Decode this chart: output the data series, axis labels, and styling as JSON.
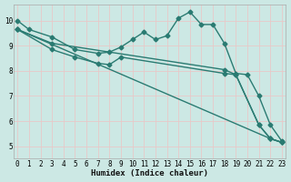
{
  "xlabel": "Humidex (Indice chaleur)",
  "bg_color": "#cce8e4",
  "line_color": "#2a7b72",
  "grid_color": "#dddddd",
  "xlim": [
    -0.3,
    23.3
  ],
  "ylim": [
    4.5,
    10.65
  ],
  "yticks": [
    5,
    6,
    7,
    8,
    9,
    10
  ],
  "xticks": [
    0,
    1,
    2,
    3,
    4,
    5,
    6,
    7,
    8,
    9,
    10,
    11,
    12,
    13,
    14,
    15,
    16,
    17,
    18,
    19,
    20,
    21,
    22,
    23
  ],
  "lines": [
    {
      "x": [
        0,
        1,
        3,
        5,
        7,
        8,
        9,
        10,
        11,
        12,
        13,
        14,
        15,
        16,
        17,
        18,
        19,
        20,
        21,
        22,
        23
      ],
      "y": [
        10.0,
        9.65,
        9.35,
        8.85,
        8.7,
        8.75,
        8.95,
        9.25,
        9.55,
        9.25,
        9.4,
        10.1,
        10.35,
        9.85,
        9.85,
        9.1,
        7.9,
        7.85,
        7.0,
        5.85,
        5.2
      ],
      "marker": "D",
      "markersize": 2.5,
      "linewidth": 1.0
    },
    {
      "x": [
        0,
        3,
        18,
        19,
        21,
        22,
        23
      ],
      "y": [
        9.65,
        9.1,
        8.05,
        7.85,
        5.85,
        5.3,
        5.15
      ],
      "marker": "D",
      "markersize": 2.5,
      "linewidth": 1.0
    },
    {
      "x": [
        0,
        3,
        5,
        7,
        8,
        9,
        18,
        19,
        21,
        22,
        23
      ],
      "y": [
        9.65,
        8.85,
        8.55,
        8.3,
        8.25,
        8.55,
        7.9,
        7.85,
        5.85,
        5.3,
        5.15
      ],
      "marker": "D",
      "markersize": 2.5,
      "linewidth": 1.0
    },
    {
      "x": [
        0,
        22,
        23
      ],
      "y": [
        9.65,
        5.3,
        5.15
      ],
      "marker": "D",
      "markersize": 2.5,
      "linewidth": 1.0
    }
  ]
}
